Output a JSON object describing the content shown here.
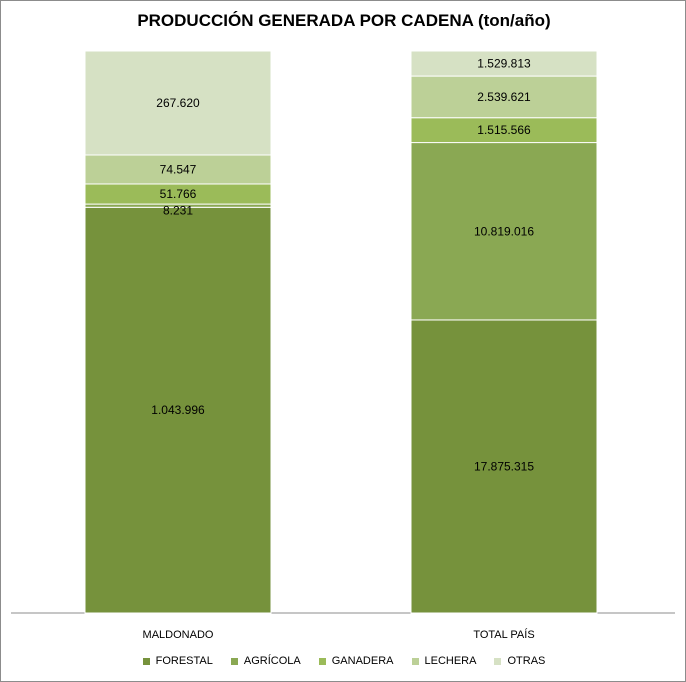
{
  "chart_data": {
    "type": "bar",
    "stacked": true,
    "normalized": true,
    "title": "PRODUCCIÓN GENERADA POR CADENA (ton/año)",
    "categories": [
      "MALDONADO",
      "TOTAL PAÍS"
    ],
    "series": [
      {
        "name": "FORESTAL",
        "color": "#76923c",
        "values": [
          1043996,
          17875315
        ],
        "labels": [
          "1.043.996",
          "17.875.315"
        ]
      },
      {
        "name": "AGRÍCOLA",
        "color": "#8aa853",
        "values": [
          8231,
          10819016
        ],
        "labels": [
          "8.231",
          "10.819.016"
        ]
      },
      {
        "name": "GANADERA",
        "color": "#9bbb59",
        "values": [
          51766,
          1515566
        ],
        "labels": [
          "51.766",
          "1.515.566"
        ]
      },
      {
        "name": "LECHERA",
        "color": "#bcd097",
        "values": [
          74547,
          2539621
        ],
        "labels": [
          "74.547",
          "2.539.621"
        ]
      },
      {
        "name": "OTRAS",
        "color": "#d6e1c4",
        "values": [
          267620,
          1529813
        ],
        "labels": [
          "267.620",
          "1.529.813"
        ]
      }
    ],
    "xlabel": "",
    "ylabel": "",
    "grid": false,
    "legend_position": "bottom"
  }
}
